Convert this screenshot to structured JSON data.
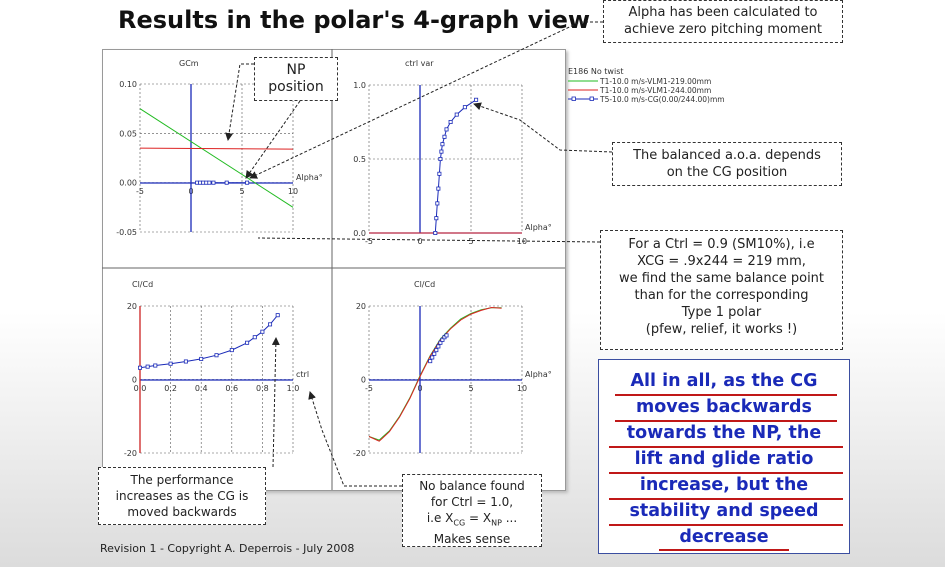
{
  "title": "Results in the polar's 4-graph view",
  "footer": "Revision 1 - Copyright A. Deperrois - July 2008",
  "callouts": {
    "np_position": [
      "NP",
      "position"
    ],
    "alpha_note": [
      "Alpha has been calculated to",
      "achieve zero pitching moment"
    ],
    "balanced_aoa": [
      "The balanced a.o.a. depends",
      "on the CG position"
    ],
    "ctrl_example": [
      "For a Ctrl = 0.9 (SM10%), i.e",
      "XCG = .9x244 = 219 mm,",
      "we find the same balance point",
      "than for the corresponding",
      "Type 1 polar",
      "(pfew, relief, it works !)"
    ],
    "performance": [
      "The performance",
      "increases as the CG is",
      "moved backwards"
    ],
    "no_balance": {
      "l1": "No balance found",
      "l2": "for Ctrl = 1.0,",
      "l3_pre": "i.e X",
      "sub1": "CG",
      "l3_mid": " = X",
      "sub2": "NP",
      "l3_post": " ...",
      "l4": "Makes sense"
    }
  },
  "conclusion": [
    "All in all, as the CG",
    "moves backwards",
    "towards the NP, the",
    "lift and glide ratio",
    "increase, but the",
    "stability and speed",
    "decrease"
  ],
  "legend": {
    "title": "E186 No twist",
    "entries": [
      {
        "label": "T1-10.0 m/s-VLM1-219.00mm",
        "color": "#22bb22"
      },
      {
        "label": "T1-10.0 m/s-VLM1-244.00mm",
        "color": "#dd2222"
      },
      {
        "label": "T5-10.0 m/s-CG(0.00/244.00)mm",
        "color": "#1a2ab8",
        "marker": "square"
      }
    ]
  },
  "chart_data": [
    {
      "type": "line",
      "ylabel": "GCm",
      "xlabel": "Alpha°",
      "xlim": [
        -5,
        10
      ],
      "ylim": [
        -0.05,
        0.1
      ],
      "xticks": [
        "-5",
        "0",
        "5",
        "10"
      ],
      "yticks": [
        "0.10",
        "0.05",
        "0.00",
        "-0.05"
      ],
      "series": [
        {
          "name": "T1-10.0 m/s-VLM1-219.00mm",
          "color": "#22bb22",
          "x": [
            -5,
            10
          ],
          "y": [
            0.075,
            -0.025
          ]
        },
        {
          "name": "T1-10.0 m/s-VLM1-244.00mm",
          "color": "#dd2222",
          "x": [
            -5,
            10
          ],
          "y": [
            0.035,
            0.034
          ]
        },
        {
          "name": "T5-10.0 m/s-CG(0.00/244.00)mm",
          "color": "#1a2ab8",
          "marker": "square",
          "x": [
            0.6,
            0.9,
            1.2,
            1.5,
            1.8,
            2.2,
            3.5,
            5.5
          ],
          "y": [
            0,
            0,
            0,
            0,
            0,
            0,
            0,
            0
          ]
        }
      ]
    },
    {
      "type": "line",
      "ylabel": "ctrl var",
      "xlabel": "Alpha°",
      "xlim": [
        -5,
        10
      ],
      "ylim": [
        0,
        1.0
      ],
      "xticks": [
        "-5",
        "0",
        "5",
        "10"
      ],
      "yticks": [
        "1.0",
        "0.5",
        "0.0"
      ],
      "series": [
        {
          "name": "T1-10.0 m/s-VLM1-244.00mm",
          "color": "#dd2222",
          "x": [
            -5,
            10
          ],
          "y": [
            0,
            0
          ]
        },
        {
          "name": "T5-10.0 m/s-CG(0.00/244.00)mm",
          "color": "#1a2ab8",
          "marker": "square",
          "x": [
            1.5,
            1.6,
            1.7,
            1.8,
            1.9,
            2.0,
            2.1,
            2.2,
            2.4,
            2.6,
            3.0,
            3.6,
            4.4,
            5.5
          ],
          "y": [
            0.0,
            0.1,
            0.2,
            0.3,
            0.4,
            0.5,
            0.55,
            0.6,
            0.65,
            0.7,
            0.75,
            0.8,
            0.85,
            0.9
          ]
        }
      ]
    },
    {
      "type": "line",
      "ylabel": "Cl/Cd",
      "xlabel": "ctrl",
      "xlim": [
        0,
        1.0
      ],
      "ylim": [
        -20,
        20
      ],
      "xticks": [
        "0.0",
        "0.2",
        "0.4",
        "0.6",
        "0.8",
        "1.0"
      ],
      "yticks": [
        "20",
        "0",
        "-20"
      ],
      "series": [
        {
          "name": "T5-10.0 m/s-CG(0.00/244.00)mm",
          "color": "#1a2ab8",
          "marker": "square",
          "x": [
            0.0,
            0.05,
            0.1,
            0.2,
            0.3,
            0.4,
            0.5,
            0.6,
            0.7,
            0.75,
            0.8,
            0.85,
            0.9
          ],
          "y": [
            3.2,
            3.5,
            3.8,
            4.3,
            4.9,
            5.6,
            6.6,
            8.0,
            10.0,
            11.5,
            13.0,
            15.0,
            17.5
          ]
        }
      ]
    },
    {
      "type": "line",
      "ylabel": "Cl/Cd",
      "xlabel": "Alpha°",
      "xlim": [
        -5,
        10
      ],
      "ylim": [
        -20,
        20
      ],
      "xticks": [
        "-5",
        "0",
        "5",
        "10"
      ],
      "yticks": [
        "20",
        "0",
        "-20"
      ],
      "series": [
        {
          "name": "T1-10.0 m/s-VLM1-219.00mm",
          "color": "#22bb22",
          "x": [
            -5,
            -4,
            -3,
            -2,
            -1,
            0,
            1,
            2,
            3,
            4,
            5,
            6,
            7,
            8
          ],
          "y": [
            -15.5,
            -16.5,
            -14,
            -10,
            -5,
            1,
            6.5,
            11,
            14,
            16.5,
            18,
            19,
            19.5,
            19.5
          ]
        },
        {
          "name": "T1-10.0 m/s-VLM1-244.00mm",
          "color": "#dd2222",
          "x": [
            -5,
            -4,
            -3,
            -2,
            -1,
            0,
            1,
            2,
            3,
            4,
            5,
            6,
            7,
            8
          ],
          "y": [
            -15.5,
            -16.8,
            -14.2,
            -10.2,
            -5.2,
            0.8,
            6.3,
            10.8,
            13.8,
            16.2,
            17.8,
            18.8,
            19.6,
            19.4
          ]
        },
        {
          "name": "T5-10.0 m/s-CG(0.00/244.00)mm",
          "color": "#1a2ab8",
          "marker": "square",
          "x": [
            1.0,
            1.2,
            1.4,
            1.6,
            1.8,
            2.0,
            2.2,
            2.4,
            2.6
          ],
          "y": [
            5.0,
            6.0,
            7.0,
            8.0,
            9.0,
            10.0,
            10.8,
            11.5,
            12.0
          ]
        }
      ]
    }
  ]
}
